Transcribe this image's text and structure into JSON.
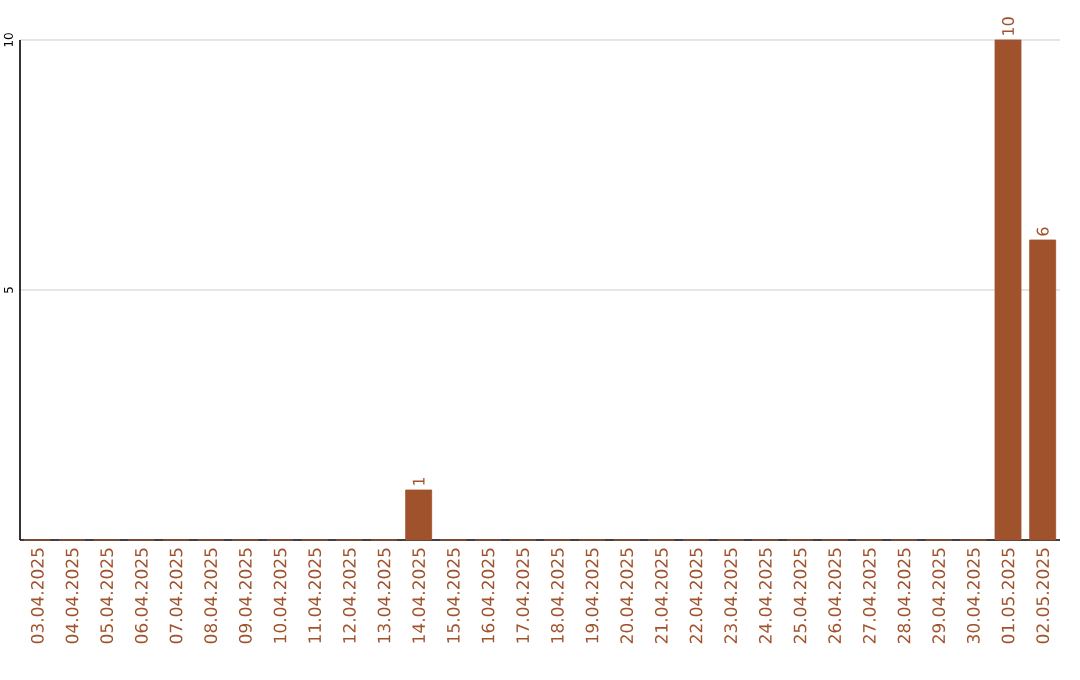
{
  "chart_data": {
    "type": "bar",
    "categories": [
      "03.04.2025",
      "04.04.2025",
      "05.04.2025",
      "06.04.2025",
      "07.04.2025",
      "08.04.2025",
      "09.04.2025",
      "10.04.2025",
      "11.04.2025",
      "12.04.2025",
      "13.04.2025",
      "14.04.2025",
      "15.04.2025",
      "16.04.2025",
      "17.04.2025",
      "18.04.2025",
      "19.04.2025",
      "20.04.2025",
      "21.04.2025",
      "22.04.2025",
      "23.04.2025",
      "24.04.2025",
      "25.04.2025",
      "26.04.2025",
      "27.04.2025",
      "28.04.2025",
      "29.04.2025",
      "30.04.2025",
      "01.05.2025",
      "02.05.2025"
    ],
    "values": [
      0,
      0,
      0,
      0,
      0,
      0,
      0,
      0,
      0,
      0,
      0,
      1,
      0,
      0,
      0,
      0,
      0,
      0,
      0,
      0,
      0,
      0,
      0,
      0,
      0,
      0,
      0,
      0,
      10,
      6
    ],
    "value_labels": [
      null,
      null,
      null,
      null,
      null,
      null,
      null,
      null,
      null,
      null,
      null,
      "1",
      null,
      null,
      null,
      null,
      null,
      null,
      null,
      null,
      null,
      null,
      null,
      null,
      null,
      null,
      null,
      null,
      "10",
      "6"
    ],
    "color": "#a0522d",
    "ylim": [
      0,
      10
    ],
    "yticks": [
      5,
      10
    ],
    "grid": "y"
  }
}
